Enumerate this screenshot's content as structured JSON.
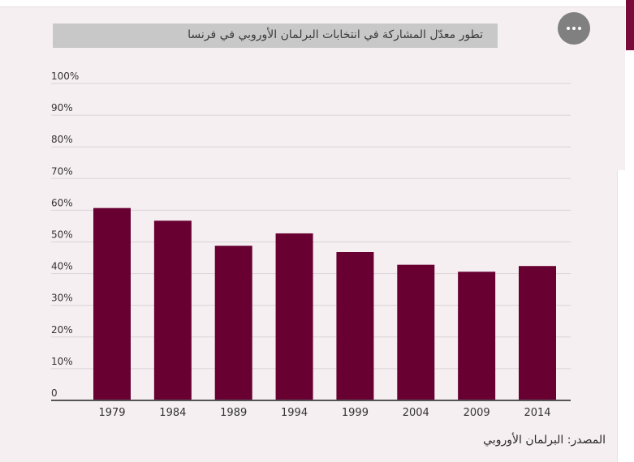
{
  "header": {
    "title": "تطور معدّل المشاركة في  انتخابات البرلمان الأوروبي في فرنسا",
    "menu_icon": "more-dots-icon"
  },
  "chart_data": {
    "type": "bar",
    "title": "تطور معدّل المشاركة في  انتخابات البرلمان الأوروبي في فرنسا",
    "categories": [
      "1979",
      "1984",
      "1989",
      "1994",
      "1999",
      "2004",
      "2009",
      "2014"
    ],
    "values": [
      60.7,
      56.7,
      48.8,
      52.7,
      46.8,
      42.8,
      40.6,
      42.4
    ],
    "ylim": [
      0,
      100
    ],
    "yticks": [
      "0",
      "10%",
      "20%",
      "30%",
      "40%",
      "50%",
      "60%",
      "70%",
      "80%",
      "90%",
      "100%"
    ],
    "xlabel": "",
    "ylabel": "",
    "grid": true,
    "bar_color": "#680032"
  },
  "footer": {
    "source": "المصدر: البرلمان الأوروبي"
  }
}
